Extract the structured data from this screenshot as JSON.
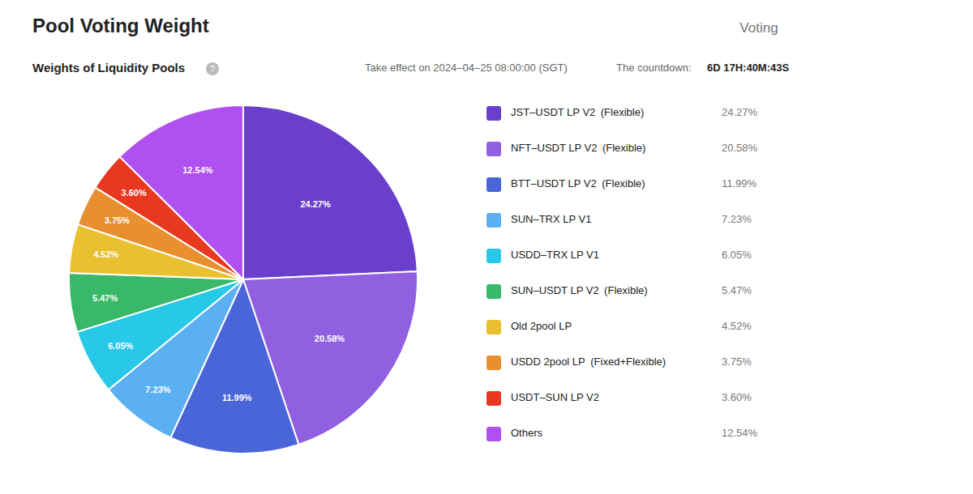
{
  "chart_data": {
    "type": "pie",
    "title": "Pool Voting Weight",
    "subtitle": "Weights of Liquidity Pools",
    "annotations": [
      "Voting",
      "?",
      "Take effect on 2024–04–25 08:00:00 (SGT)",
      "The countdown:",
      "6D 17H:40M:43S"
    ],
    "categories": [
      "JST–USDT LP V2 (Flexible)",
      "NFT–USDT LP V2 (Flexible)",
      "BTT–USDT LP V2 (Flexible)",
      "SUN–TRX LP V1",
      "USDD–TRX LP V1",
      "SUN–USDT LP V2 (Flexible)",
      "Old 2pool LP",
      "USDD 2pool LP (Fixed+Flexible)",
      "USDT–SUN LP V2",
      "Others"
    ],
    "values": [
      24.27,
      20.58,
      11.99,
      7.23,
      6.05,
      5.47,
      4.52,
      3.75,
      3.6,
      12.54
    ],
    "value_labels": [
      "24.27%",
      "20.58%",
      "11.99%",
      "7.23%",
      "6.05%",
      "5.47%",
      "4.52%",
      "3.75%",
      "3.60%",
      "12.54%"
    ],
    "colors": [
      "#6a3fcb",
      "#9060e0",
      "#4a65d8",
      "#5ab0f0",
      "#28c8e8",
      "#38b868",
      "#e8c030",
      "#e89030",
      "#e83820",
      "#b050f0"
    ],
    "data_labels": true,
    "legend": "right"
  }
}
